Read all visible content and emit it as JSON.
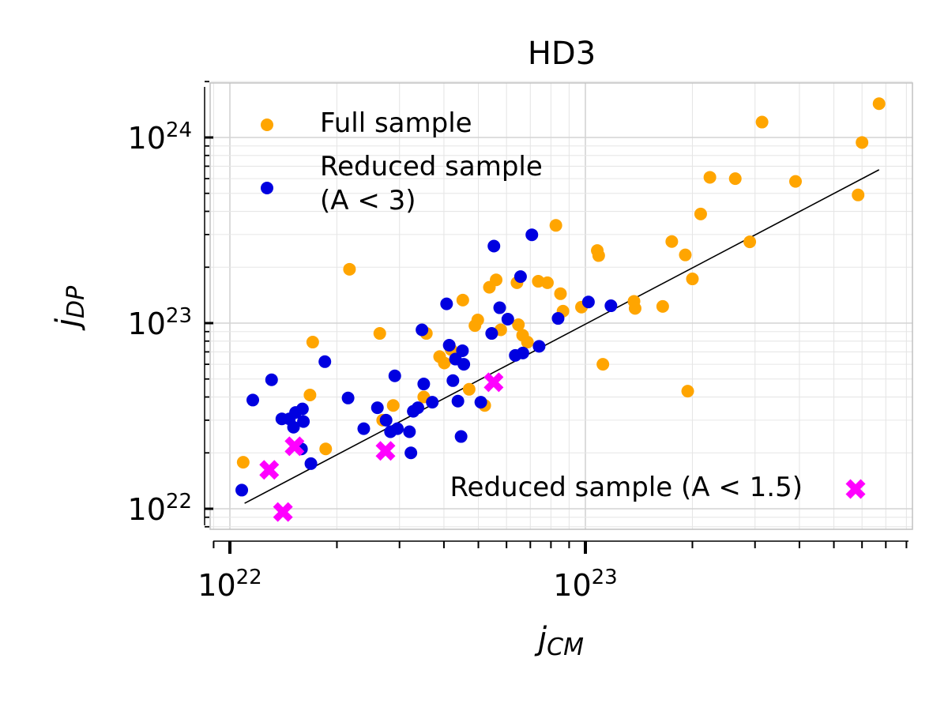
{
  "chart_data": {
    "type": "scatter",
    "title": "HD3",
    "xlabel": "j",
    "xlabel_sub": "CM",
    "ylabel": "j",
    "ylabel_sub": "DP",
    "xscale": "log",
    "yscale": "log",
    "xlim": [
      8.8e+21,
      8.5e+23
    ],
    "ylim": [
      7.7e+21,
      2e+24
    ],
    "xticks": [
      {
        "value": 1e+22,
        "base": "10",
        "exp": "22"
      },
      {
        "value": 1e+23,
        "base": "10",
        "exp": "23"
      }
    ],
    "yticks": [
      {
        "value": 1e+22,
        "base": "10",
        "exp": "22"
      },
      {
        "value": 1e+23,
        "base": "10",
        "exp": "23"
      },
      {
        "value": 1e+24,
        "base": "10",
        "exp": "24"
      }
    ],
    "grid": true,
    "colors": {
      "full": "#FFA500",
      "reduced": "#0000E0",
      "reduced15": "#FF00FF",
      "fit": "#000000",
      "grid": "#e6e6e6",
      "frame": "#c0c0c0"
    },
    "series": [
      {
        "name": "Full sample",
        "marker": "circle",
        "color": "#FFA500",
        "x": [
          1.09e+22,
          1.68e+22,
          1.71e+22,
          1.86e+22,
          2.17e+22,
          2.64e+22,
          2.69e+22,
          2.88e+22,
          3.51e+22,
          3.57e+22,
          3.89e+22,
          4.01e+22,
          4.19e+22,
          4.52e+22,
          4.71e+22,
          4.89e+22,
          4.98e+22,
          5.21e+22,
          5.37e+22,
          5.61e+22,
          5.78e+22,
          6.42e+22,
          6.48e+22,
          6.66e+22,
          6.87e+22,
          7.37e+22,
          7.82e+22,
          8.26e+22,
          8.51e+22,
          8.65e+22,
          9.75e+22,
          1.08e+23,
          1.09e+23,
          1.12e+23,
          1.37e+23,
          1.38e+23,
          1.65e+23,
          1.75e+23,
          1.91e+23,
          1.94e+23,
          2e+23,
          2.11e+23,
          2.24e+23,
          2.64e+23,
          2.9e+23,
          3.14e+23,
          3.9e+23,
          5.85e+23,
          6e+23,
          6.7e+23
        ],
        "y": [
          1.78e+22,
          4.1e+22,
          7.9e+22,
          2.1e+22,
          1.95e+23,
          8.8e+22,
          3e+22,
          3.6e+22,
          4e+22,
          8.8e+22,
          6.6e+22,
          6.1e+22,
          7.2e+22,
          1.33e+23,
          4.4e+22,
          9.7e+22,
          1.04e+23,
          3.6e+22,
          1.56e+23,
          1.71e+23,
          9.2e+22,
          1.65e+23,
          9.8e+22,
          8.6e+22,
          7.9e+22,
          1.68e+23,
          1.65e+23,
          3.36e+23,
          1.44e+23,
          1.16e+23,
          1.22e+23,
          2.46e+23,
          2.31e+23,
          6e+22,
          1.31e+23,
          1.2e+23,
          1.23e+23,
          2.75e+23,
          2.33e+23,
          4.3e+22,
          1.73e+23,
          3.87e+23,
          6.1e+23,
          6e+23,
          2.74e+23,
          1.21e+24,
          5.8e+23,
          4.9e+23,
          9.4e+23,
          1.52e+24
        ]
      },
      {
        "name": "Reduced sample (A < 3)",
        "marker": "circle",
        "color": "#0000E0",
        "x": [
          1.08e+22,
          1.16e+22,
          1.31e+22,
          1.4e+22,
          1.47e+22,
          1.51e+22,
          1.53e+22,
          1.59e+22,
          1.6e+22,
          1.61e+22,
          1.69e+22,
          1.85e+22,
          2.15e+22,
          2.38e+22,
          2.6e+22,
          2.75e+22,
          2.83e+22,
          2.91e+22,
          2.96e+22,
          3.2e+22,
          3.23e+22,
          3.28e+22,
          3.38e+22,
          3.47e+22,
          3.51e+22,
          3.71e+22,
          4.07e+22,
          4.14e+22,
          4.24e+22,
          4.31e+22,
          4.38e+22,
          4.47e+22,
          4.51e+22,
          4.55e+22,
          5.08e+22,
          5.45e+22,
          5.53e+22,
          5.74e+22,
          6.05e+22,
          6.35e+22,
          6.57e+22,
          6.67e+22,
          7.07e+22,
          7.41e+22,
          8.38e+22,
          1.02e+23,
          1.18e+23
        ],
        "y": [
          1.26e+22,
          3.85e+22,
          4.95e+22,
          3.05e+22,
          3.05e+22,
          2.75e+22,
          3.3e+22,
          2.1e+22,
          3.45e+22,
          2.95e+22,
          1.75e+22,
          6.2e+22,
          3.95e+22,
          2.7e+22,
          3.5e+22,
          3e+22,
          2.6e+22,
          5.2e+22,
          2.7e+22,
          2.6e+22,
          2e+22,
          3.35e+22,
          3.5e+22,
          9.2e+22,
          4.7e+22,
          3.75e+22,
          1.27e+23,
          7.6e+22,
          4.9e+22,
          6.4e+22,
          3.8e+22,
          2.45e+22,
          7.1e+22,
          6e+22,
          3.75e+22,
          8.8e+22,
          2.6e+23,
          1.21e+23,
          1.05e+23,
          6.7e+22,
          1.78e+23,
          6.9e+22,
          2.99e+23,
          7.5e+22,
          1.06e+23,
          1.3e+23,
          1.24e+23
        ]
      },
      {
        "name": "Reduced sample (A < 1.5)",
        "marker": "x",
        "color": "#FF00FF",
        "x": [
          1.29e+22,
          1.41e+22,
          1.52e+22,
          2.74e+22,
          5.52e+22
        ],
        "y": [
          1.62e+22,
          9.6e+21,
          2.17e+22,
          2.05e+22,
          4.8e+22
        ]
      }
    ],
    "fit_line": {
      "x": [
        1.1e+22,
        6.7e+23
      ],
      "y": [
        1.07e+22,
        6.7e+23
      ]
    },
    "legend": [
      {
        "label": "Full sample",
        "series": 0,
        "placement": "top-left"
      },
      {
        "label_line1": "Reduced sample",
        "label_line2": "(A < 3)",
        "series": 1,
        "placement": "top-left"
      },
      {
        "label": "Reduced sample (A < 1.5)",
        "series": 2,
        "placement": "lower-right"
      }
    ]
  }
}
